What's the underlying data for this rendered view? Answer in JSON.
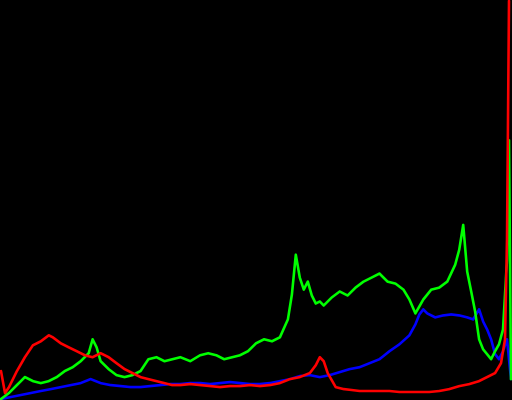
{
  "chart_data": {
    "type": "line",
    "title": "",
    "xlabel": "",
    "ylabel": "",
    "grid": false,
    "xlim": [
      0,
      256
    ],
    "ylim": [
      0,
      400
    ],
    "series": [
      {
        "color": "#0000ff",
        "points": [
          [
            0,
            0
          ],
          [
            5,
            2
          ],
          [
            10,
            4
          ],
          [
            15,
            6
          ],
          [
            20,
            8
          ],
          [
            25,
            10
          ],
          [
            30,
            12
          ],
          [
            35,
            14
          ],
          [
            40,
            16
          ],
          [
            45,
            20
          ],
          [
            50,
            16
          ],
          [
            55,
            14
          ],
          [
            60,
            13
          ],
          [
            65,
            12
          ],
          [
            70,
            12
          ],
          [
            75,
            13
          ],
          [
            80,
            14
          ],
          [
            85,
            15
          ],
          [
            90,
            15
          ],
          [
            95,
            16
          ],
          [
            100,
            16
          ],
          [
            105,
            15
          ],
          [
            110,
            16
          ],
          [
            115,
            17
          ],
          [
            120,
            16
          ],
          [
            125,
            15
          ],
          [
            130,
            15
          ],
          [
            135,
            16
          ],
          [
            140,
            18
          ],
          [
            145,
            20
          ],
          [
            150,
            23
          ],
          [
            155,
            24
          ],
          [
            160,
            22
          ],
          [
            165,
            24
          ],
          [
            170,
            27
          ],
          [
            175,
            30
          ],
          [
            180,
            32
          ],
          [
            185,
            36
          ],
          [
            190,
            40
          ],
          [
            195,
            48
          ],
          [
            200,
            55
          ],
          [
            205,
            64
          ],
          [
            208,
            75
          ],
          [
            210,
            85
          ],
          [
            212,
            90
          ],
          [
            214,
            86
          ],
          [
            218,
            82
          ],
          [
            222,
            84
          ],
          [
            226,
            85
          ],
          [
            230,
            84
          ],
          [
            234,
            82
          ],
          [
            237,
            80
          ],
          [
            240,
            90
          ],
          [
            242,
            78
          ],
          [
            244,
            70
          ],
          [
            246,
            60
          ],
          [
            248,
            45
          ],
          [
            250,
            40
          ],
          [
            252,
            48
          ],
          [
            254,
            60
          ],
          [
            255,
            40
          ],
          [
            256,
            20
          ]
        ]
      },
      {
        "color": "#00ff00",
        "points": [
          [
            0,
            0
          ],
          [
            4,
            6
          ],
          [
            8,
            14
          ],
          [
            12,
            22
          ],
          [
            16,
            18
          ],
          [
            20,
            16
          ],
          [
            24,
            18
          ],
          [
            28,
            22
          ],
          [
            32,
            28
          ],
          [
            36,
            32
          ],
          [
            40,
            38
          ],
          [
            44,
            46
          ],
          [
            46,
            60
          ],
          [
            48,
            52
          ],
          [
            50,
            38
          ],
          [
            54,
            30
          ],
          [
            58,
            24
          ],
          [
            62,
            22
          ],
          [
            66,
            24
          ],
          [
            70,
            28
          ],
          [
            74,
            40
          ],
          [
            78,
            42
          ],
          [
            82,
            38
          ],
          [
            86,
            40
          ],
          [
            90,
            42
          ],
          [
            95,
            38
          ],
          [
            100,
            44
          ],
          [
            104,
            46
          ],
          [
            108,
            44
          ],
          [
            112,
            40
          ],
          [
            116,
            42
          ],
          [
            120,
            44
          ],
          [
            124,
            48
          ],
          [
            128,
            56
          ],
          [
            132,
            60
          ],
          [
            136,
            58
          ],
          [
            140,
            62
          ],
          [
            144,
            80
          ],
          [
            146,
            105
          ],
          [
            148,
            145
          ],
          [
            150,
            122
          ],
          [
            152,
            110
          ],
          [
            154,
            118
          ],
          [
            156,
            104
          ],
          [
            158,
            96
          ],
          [
            160,
            98
          ],
          [
            162,
            94
          ],
          [
            166,
            102
          ],
          [
            170,
            108
          ],
          [
            174,
            104
          ],
          [
            178,
            112
          ],
          [
            182,
            118
          ],
          [
            186,
            122
          ],
          [
            190,
            126
          ],
          [
            194,
            118
          ],
          [
            198,
            116
          ],
          [
            202,
            110
          ],
          [
            205,
            100
          ],
          [
            208,
            86
          ],
          [
            212,
            100
          ],
          [
            216,
            110
          ],
          [
            220,
            112
          ],
          [
            224,
            118
          ],
          [
            228,
            135
          ],
          [
            230,
            150
          ],
          [
            232,
            175
          ],
          [
            234,
            128
          ],
          [
            236,
            108
          ],
          [
            238,
            88
          ],
          [
            240,
            60
          ],
          [
            242,
            50
          ],
          [
            244,
            45
          ],
          [
            246,
            40
          ],
          [
            248,
            48
          ],
          [
            250,
            55
          ],
          [
            252,
            70
          ],
          [
            254,
            140
          ],
          [
            255,
            260
          ],
          [
            256,
            20
          ]
        ]
      },
      {
        "color": "#ff0000",
        "points": [
          [
            0,
            28
          ],
          [
            2,
            6
          ],
          [
            4,
            12
          ],
          [
            8,
            28
          ],
          [
            12,
            42
          ],
          [
            16,
            54
          ],
          [
            20,
            58
          ],
          [
            24,
            64
          ],
          [
            26,
            62
          ],
          [
            30,
            56
          ],
          [
            34,
            52
          ],
          [
            38,
            48
          ],
          [
            42,
            44
          ],
          [
            46,
            42
          ],
          [
            50,
            46
          ],
          [
            54,
            42
          ],
          [
            58,
            36
          ],
          [
            62,
            30
          ],
          [
            66,
            26
          ],
          [
            70,
            22
          ],
          [
            74,
            20
          ],
          [
            78,
            18
          ],
          [
            82,
            16
          ],
          [
            86,
            14
          ],
          [
            90,
            14
          ],
          [
            95,
            15
          ],
          [
            100,
            14
          ],
          [
            105,
            13
          ],
          [
            110,
            12
          ],
          [
            115,
            13
          ],
          [
            120,
            13
          ],
          [
            125,
            14
          ],
          [
            130,
            13
          ],
          [
            135,
            14
          ],
          [
            140,
            16
          ],
          [
            145,
            20
          ],
          [
            150,
            22
          ],
          [
            155,
            26
          ],
          [
            158,
            34
          ],
          [
            160,
            42
          ],
          [
            162,
            38
          ],
          [
            164,
            26
          ],
          [
            168,
            12
          ],
          [
            172,
            10
          ],
          [
            176,
            9
          ],
          [
            180,
            8
          ],
          [
            185,
            8
          ],
          [
            190,
            8
          ],
          [
            195,
            8
          ],
          [
            200,
            7
          ],
          [
            205,
            7
          ],
          [
            210,
            7
          ],
          [
            215,
            7
          ],
          [
            220,
            8
          ],
          [
            225,
            10
          ],
          [
            230,
            13
          ],
          [
            235,
            15
          ],
          [
            240,
            18
          ],
          [
            244,
            22
          ],
          [
            248,
            26
          ],
          [
            251,
            36
          ],
          [
            253,
            60
          ],
          [
            254,
            160
          ],
          [
            255,
            400
          ]
        ]
      }
    ]
  }
}
